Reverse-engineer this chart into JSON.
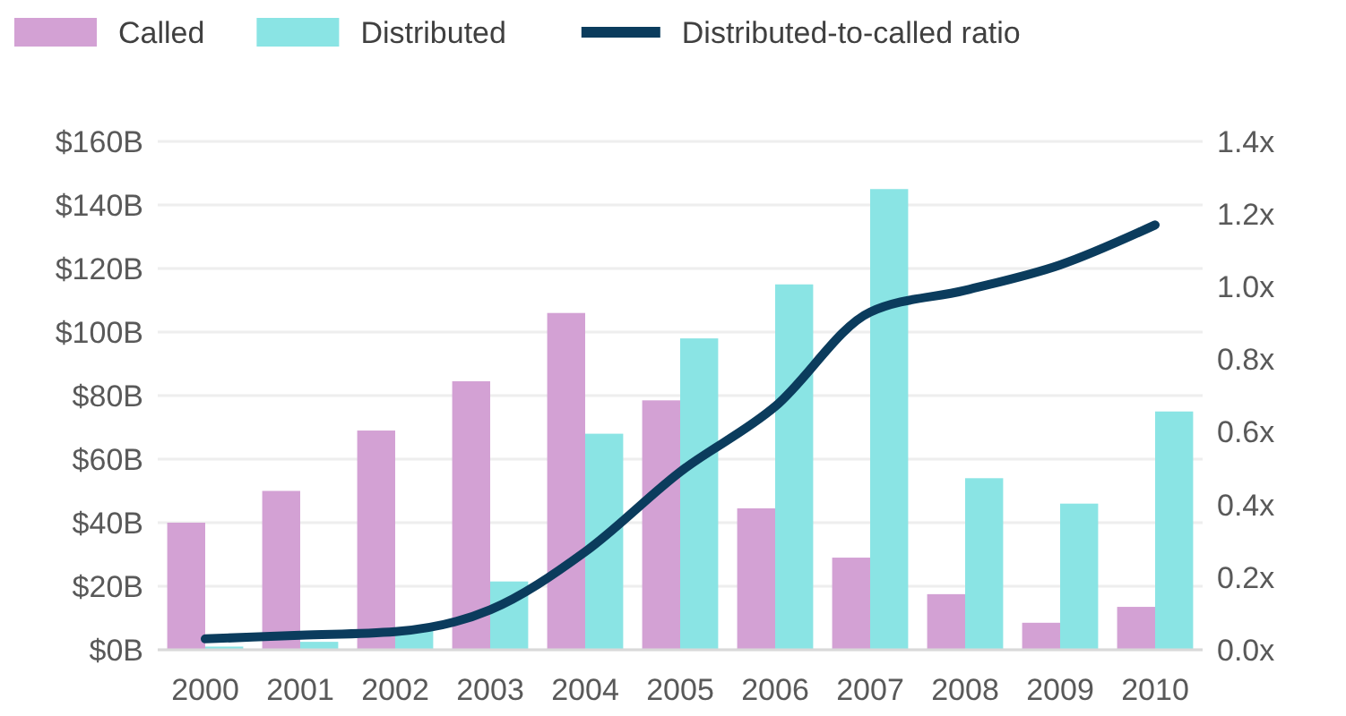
{
  "chart_data": {
    "type": "bar",
    "categories": [
      "2000",
      "2001",
      "2002",
      "2003",
      "2004",
      "2005",
      "2006",
      "2007",
      "2008",
      "2009",
      "2010"
    ],
    "series": [
      {
        "name": "Called",
        "color": "#d3a1d4",
        "values": [
          40,
          50,
          69,
          84.5,
          106,
          78.5,
          44.5,
          29,
          17.5,
          8.5,
          13.5
        ]
      },
      {
        "name": "Distributed",
        "color": "#8ae4e4",
        "values": [
          1,
          2.5,
          6,
          21.5,
          68,
          98,
          115,
          145,
          54,
          46,
          75
        ]
      },
      {
        "name": "Distributed-to-called ratio",
        "type": "line",
        "axis": "y2",
        "color": "#0b3c5d",
        "values": [
          0.03,
          0.04,
          0.05,
          0.11,
          0.27,
          0.49,
          0.67,
          0.93,
          0.99,
          1.06,
          1.17
        ]
      }
    ],
    "ylim": [
      0,
      160
    ],
    "yticks": [
      {
        "value": 0,
        "label": "$0B"
      },
      {
        "value": 20,
        "label": "$20B"
      },
      {
        "value": 40,
        "label": "$40B"
      },
      {
        "value": 60,
        "label": "$60B"
      },
      {
        "value": 80,
        "label": "$80B"
      },
      {
        "value": 100,
        "label": "$100B"
      },
      {
        "value": 120,
        "label": "$120B"
      },
      {
        "value": 140,
        "label": "$140B"
      },
      {
        "value": 160,
        "label": "$160B"
      }
    ],
    "y2lim": [
      0,
      1.4
    ],
    "y2ticks": [
      {
        "value": 0,
        "label": "0.0x"
      },
      {
        "value": 0.2,
        "label": "0.2x"
      },
      {
        "value": 0.4,
        "label": "0.4x"
      },
      {
        "value": 0.6,
        "label": "0.6x"
      },
      {
        "value": 0.8,
        "label": "0.8x"
      },
      {
        "value": 1,
        "label": "1.0x"
      },
      {
        "value": 1.2,
        "label": "1.2x"
      },
      {
        "value": 1.4,
        "label": "1.4x"
      }
    ],
    "grid": "y",
    "legend": "top left",
    "line_style": "solid",
    "marker": "none"
  }
}
